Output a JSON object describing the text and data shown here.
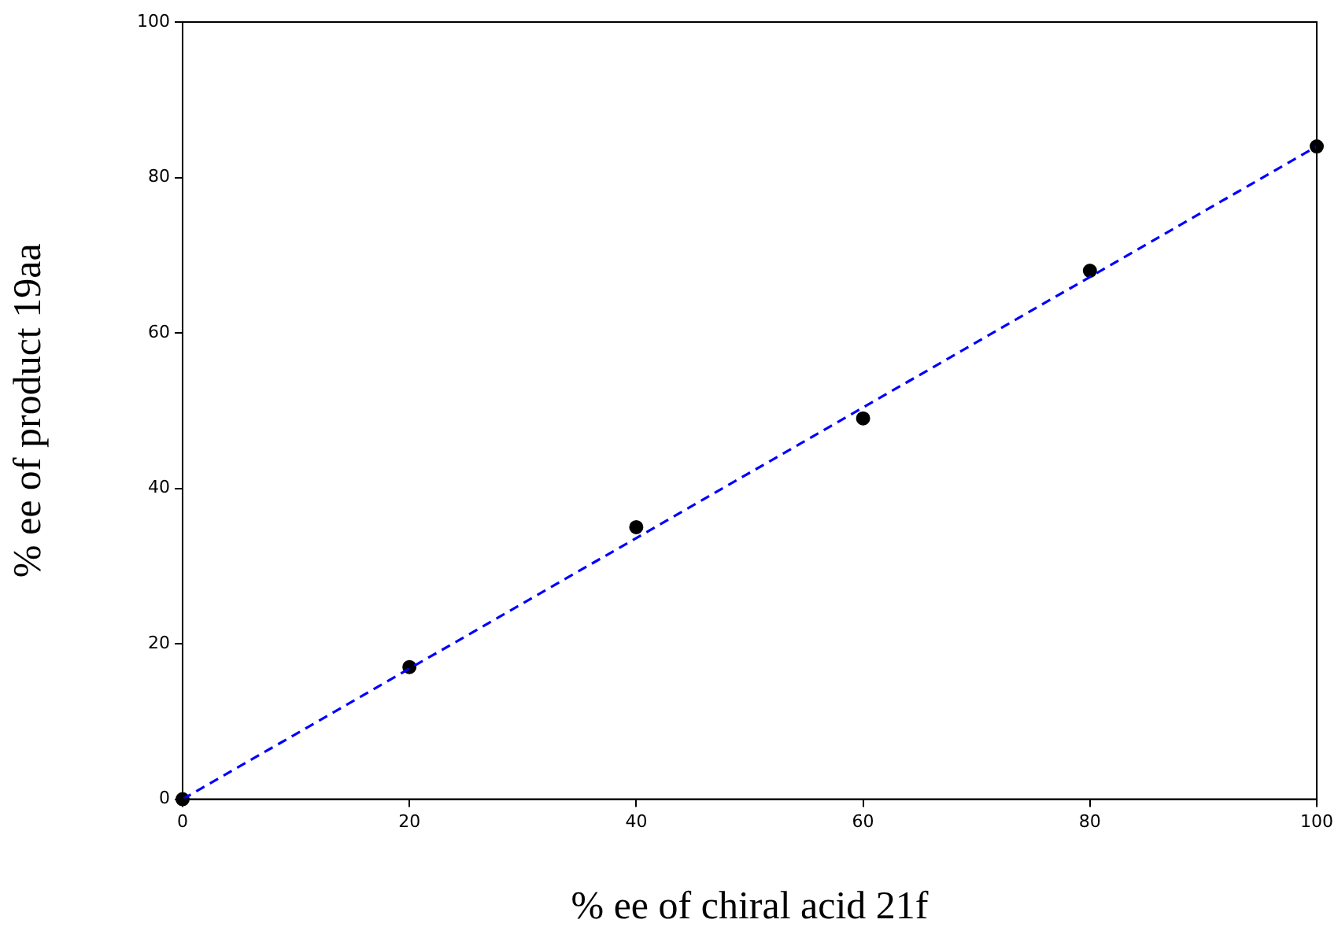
{
  "chart_data": {
    "type": "scatter",
    "xlabel": "% ee of chiral acid 21f",
    "ylabel": "% ee of product 19aa",
    "xlim": [
      0,
      100
    ],
    "ylim": [
      0,
      100
    ],
    "xticks": [
      0,
      20,
      40,
      60,
      80,
      100
    ],
    "yticks": [
      0,
      20,
      40,
      60,
      80,
      100
    ],
    "grid": false,
    "legend": false,
    "series": [
      {
        "type": "scatter",
        "color": "#000000",
        "marker": "circle",
        "x": [
          0,
          20,
          40,
          60,
          80,
          100
        ],
        "values": [
          0,
          17,
          35,
          49,
          68,
          84
        ]
      },
      {
        "type": "line",
        "color": "#0000ff",
        "marker": "none",
        "line_style": "dashed",
        "x": [
          0,
          100
        ],
        "values": [
          0,
          84
        ]
      }
    ]
  }
}
